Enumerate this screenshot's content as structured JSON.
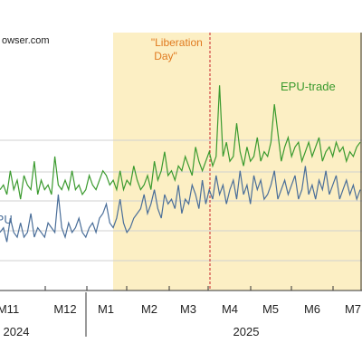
{
  "chart_data": {
    "type": "line",
    "source_text": "owser.com",
    "x_tick_labels": [
      "M11",
      "M12",
      "M1",
      "M2",
      "M3",
      "M4",
      "M5",
      "M6",
      "M7"
    ],
    "year_labels": [
      "2024",
      "2025"
    ],
    "annotations": {
      "liberation_day": "\"Liberation Day\""
    },
    "shaded_region_start": "M1 2025",
    "dashed_line_at": "2025-04-02",
    "series": [
      {
        "name": "EPU-trade",
        "color": "#3A9A2E",
        "values": [
          2.2,
          2.3,
          2.1,
          2.6,
          2.2,
          2.4,
          2.0,
          2.5,
          2.3,
          2.2,
          2.8,
          2.1,
          2.4,
          2.2,
          2.3,
          2.1,
          2.9,
          2.3,
          2.2,
          2.4,
          2.2,
          2.6,
          2.2,
          2.3,
          2.1,
          2.2,
          2.5,
          2.3,
          2.2,
          2.4,
          2.6,
          2.5,
          2.3,
          2.4,
          2.2,
          2.6,
          2.2,
          2.4,
          2.3,
          2.7,
          2.4,
          2.2,
          2.3,
          2.5,
          2.2,
          2.8,
          2.4,
          2.6,
          3.0,
          2.5,
          2.6,
          2.4,
          2.7,
          2.6,
          2.9,
          2.7,
          2.5,
          3.1,
          2.8,
          2.6,
          2.8,
          3.0,
          2.7,
          2.9,
          4.4,
          2.9,
          3.2,
          2.8,
          2.9,
          3.6,
          3.0,
          2.7,
          3.1,
          2.8,
          2.9,
          3.3,
          2.8,
          3.0,
          2.9,
          3.2,
          4.0,
          3.4,
          2.8,
          3.1,
          3.3,
          2.9,
          3.1,
          3.2,
          2.8,
          3.0,
          3.2,
          2.9,
          3.1,
          3.3,
          2.8,
          3.0,
          3.1,
          2.9,
          3.2,
          3.0,
          3.1,
          2.8,
          3.0,
          2.9,
          3.1,
          3.2
        ]
      },
      {
        "name": "EPU",
        "color": "#4A6E99",
        "values": [
          1.3,
          1.4,
          1.1,
          1.6,
          1.3,
          1.2,
          1.5,
          1.2,
          1.3,
          1.7,
          1.2,
          1.4,
          1.3,
          1.2,
          1.5,
          1.4,
          1.3,
          2.1,
          1.4,
          1.2,
          1.5,
          1.3,
          1.4,
          1.6,
          1.3,
          1.2,
          1.4,
          1.5,
          1.3,
          1.6,
          1.7,
          1.9,
          1.5,
          1.4,
          1.6,
          2.0,
          1.5,
          1.3,
          1.4,
          1.6,
          1.7,
          1.8,
          2.1,
          1.7,
          1.9,
          2.2,
          1.8,
          1.6,
          2.1,
          1.9,
          2.0,
          1.8,
          2.3,
          1.7,
          2.0,
          1.9,
          2.3,
          2.1,
          1.8,
          2.4,
          1.9,
          2.2,
          2.0,
          2.5,
          2.1,
          2.3,
          1.9,
          2.2,
          2.4,
          2.0,
          2.6,
          2.1,
          2.3,
          1.9,
          2.5,
          2.2,
          2.4,
          2.0,
          2.1,
          2.3,
          2.6,
          2.0,
          2.2,
          2.4,
          2.1,
          2.3,
          2.5,
          2.0,
          2.2,
          2.7,
          2.1,
          2.3,
          2.0,
          2.4,
          2.2,
          2.6,
          2.1,
          2.3,
          2.5,
          2.0,
          2.2,
          2.4,
          2.1,
          2.3,
          2.0,
          2.2
        ]
      }
    ]
  }
}
